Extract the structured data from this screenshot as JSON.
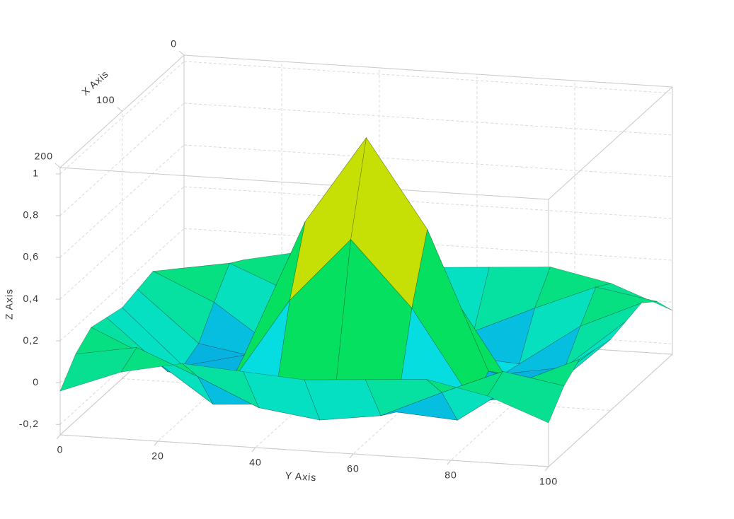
{
  "chart_data": {
    "type": "surface",
    "xlabel": "X Axis",
    "ylabel": "Y Axis",
    "zlabel": "Z Axis",
    "x": [
      0,
      25,
      50,
      75,
      100,
      125,
      150,
      175,
      200
    ],
    "y": [
      0,
      12.5,
      25,
      37.5,
      50,
      62.5,
      75,
      87.5,
      100
    ],
    "z": [
      [
        -0.04,
        0.07,
        0.13,
        0.11,
        0.09,
        0.11,
        0.13,
        0.07,
        -0.04
      ],
      [
        0.07,
        0.12,
        0.0,
        -0.13,
        -0.17,
        -0.13,
        0.0,
        0.12,
        0.07
      ],
      [
        0.13,
        0.0,
        -0.2,
        -0.18,
        -0.1,
        -0.18,
        -0.2,
        0.0,
        0.13
      ],
      [
        0.11,
        -0.13,
        -0.18,
        0.25,
        0.56,
        0.25,
        -0.18,
        -0.13,
        0.11
      ],
      [
        0.09,
        -0.17,
        -0.1,
        0.56,
        0.98,
        0.56,
        -0.1,
        -0.17,
        0.09
      ],
      [
        0.11,
        -0.13,
        -0.18,
        0.25,
        0.56,
        0.25,
        -0.18,
        -0.13,
        0.11
      ],
      [
        0.13,
        0.0,
        -0.2,
        -0.18,
        -0.1,
        -0.18,
        -0.2,
        0.0,
        0.13
      ],
      [
        0.07,
        0.12,
        0.0,
        -0.13,
        -0.17,
        -0.13,
        0.0,
        0.12,
        0.07
      ],
      [
        -0.04,
        0.07,
        0.13,
        0.11,
        0.09,
        0.11,
        0.13,
        0.07,
        -0.04
      ]
    ],
    "xlim": [
      0,
      200
    ],
    "ylim": [
      0,
      100
    ],
    "zlim": [
      -0.25,
      1.03
    ],
    "xticks": [
      0,
      100,
      200
    ],
    "yticks": [
      0,
      20,
      40,
      60,
      80,
      100
    ],
    "zticks": [
      {
        "value": -0.2,
        "label": "-0,2"
      },
      0,
      {
        "value": 0.2,
        "label": "0,2"
      },
      {
        "value": 0.4,
        "label": "0,4"
      },
      {
        "value": 0.6,
        "label": "0,6"
      },
      {
        "value": 0.8,
        "label": "0,8"
      },
      1
    ],
    "grid": true
  }
}
